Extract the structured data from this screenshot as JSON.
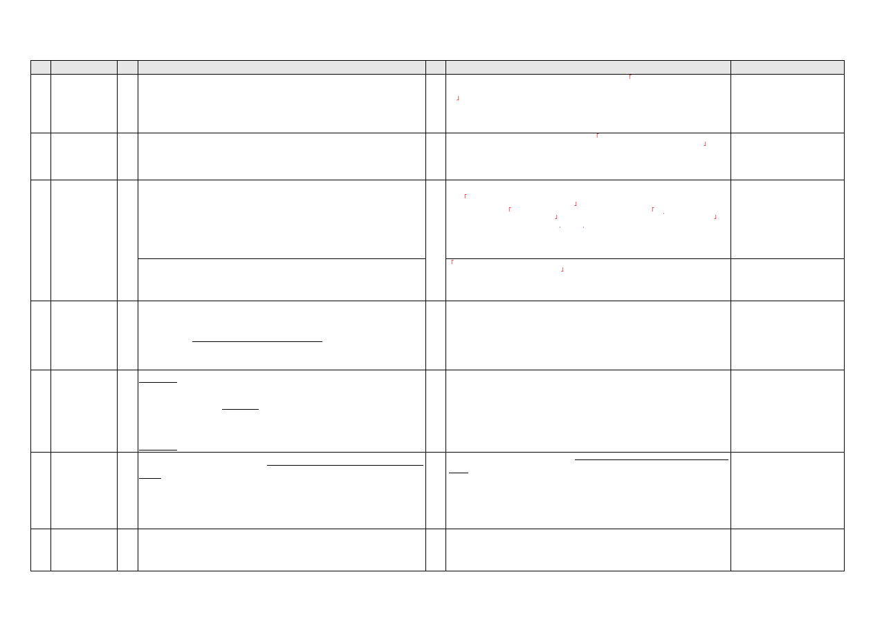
{
  "document": {
    "colors": {
      "border": "#000000",
      "header_bg": "#e6e6e6",
      "bracket": "#ff0000"
    },
    "marks": {
      "open": "「",
      "close": "」",
      "dot": "·"
    }
  }
}
